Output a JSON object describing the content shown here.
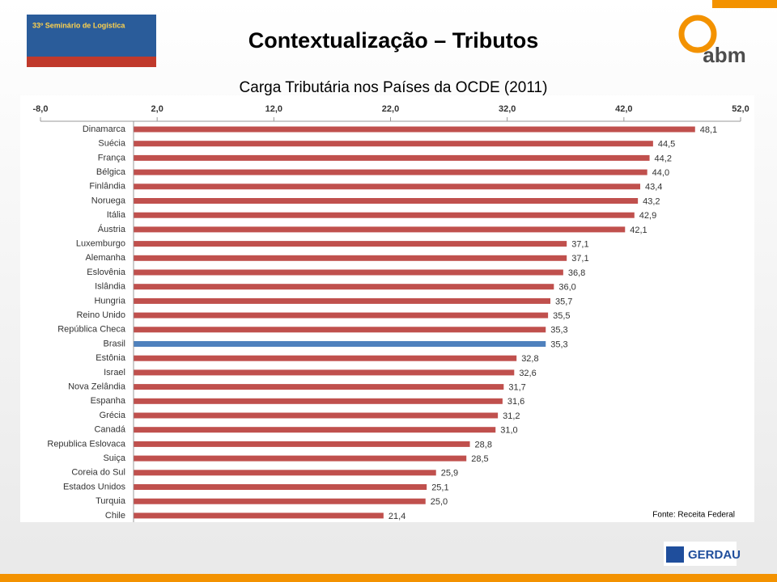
{
  "header": {
    "title": "Contextualização – Tributos",
    "event_logo": "33º Seminário de Logística",
    "org_logo": "abm",
    "sponsor_logo": "GERDAU"
  },
  "chart_data": {
    "type": "barh",
    "title": "Carga Tributária nos Países da OCDE (2011)",
    "source": "Fonte: Receita Federal",
    "categories": [
      "Dinamarca",
      "Suécia",
      "França",
      "Bélgica",
      "Finlândia",
      "Noruega",
      "Itália",
      "Áustria",
      "Luxemburgo",
      "Alemanha",
      "Eslovênia",
      "Islândia",
      "Hungria",
      "Reino Unido",
      "República Checa",
      "Brasil",
      "Estônia",
      "Israel",
      "Nova Zelândia",
      "Espanha",
      "Grécia",
      "Canadá",
      "Republica Eslovaca",
      "Suiça",
      "Coreia do Sul",
      "Estados Unidos",
      "Turquia",
      "Chile"
    ],
    "values": [
      48.1,
      44.5,
      44.2,
      44.0,
      43.4,
      43.2,
      42.9,
      42.1,
      37.1,
      37.1,
      36.8,
      36.0,
      35.7,
      35.5,
      35.3,
      35.3,
      32.8,
      32.6,
      31.7,
      31.6,
      31.2,
      31.0,
      28.8,
      28.5,
      25.9,
      25.1,
      25.0,
      21.4
    ],
    "value_labels": [
      "48,1",
      "44,5",
      "44,2",
      "44,0",
      "43,4",
      "43,2",
      "42,9",
      "42,1",
      "37,1",
      "37,1",
      "36,8",
      "36,0",
      "35,7",
      "35,5",
      "35,3",
      "35,3",
      "32,8",
      "32,6",
      "31,7",
      "31,6",
      "31,2",
      "31,0",
      "28,8",
      "28,5",
      "25,9",
      "25,1",
      "25,0",
      "21,4"
    ],
    "colors": [
      "#c0504d",
      "#c0504d",
      "#c0504d",
      "#c0504d",
      "#c0504d",
      "#c0504d",
      "#c0504d",
      "#c0504d",
      "#c0504d",
      "#c0504d",
      "#c0504d",
      "#c0504d",
      "#c0504d",
      "#c0504d",
      "#c0504d",
      "#4f81bd",
      "#c0504d",
      "#c0504d",
      "#c0504d",
      "#c0504d",
      "#c0504d",
      "#c0504d",
      "#c0504d",
      "#c0504d",
      "#c0504d",
      "#c0504d",
      "#c0504d",
      "#c0504d"
    ],
    "xlim": [
      -8,
      52
    ],
    "xticks": [
      {
        "value": -8,
        "label": "-8,0"
      },
      {
        "value": 2,
        "label": "2,0"
      },
      {
        "value": 12,
        "label": "12,0"
      },
      {
        "value": 22,
        "label": "22,0"
      },
      {
        "value": 32,
        "label": "32,0"
      },
      {
        "value": 42,
        "label": "42,0"
      },
      {
        "value": 52,
        "label": "52,0"
      }
    ]
  }
}
